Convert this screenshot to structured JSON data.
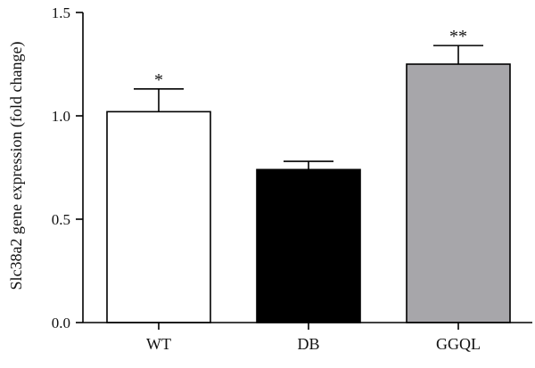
{
  "chart_data": {
    "type": "bar",
    "title": "",
    "xlabel": "",
    "ylabel": "Slc38a2 gene expression (fold change)",
    "ylim": [
      0,
      1.5
    ],
    "yticks": [
      "0.0",
      "0.5",
      "1.0",
      "1.5"
    ],
    "grid": false,
    "categories": [
      "WT",
      "DB",
      "GGQL"
    ],
    "values": [
      1.02,
      0.74,
      1.25
    ],
    "errors": [
      0.11,
      0.04,
      0.09
    ],
    "significance": [
      "*",
      "",
      "**"
    ],
    "colors": [
      "#ffffff",
      "#000000",
      "#a7a6aa"
    ]
  }
}
